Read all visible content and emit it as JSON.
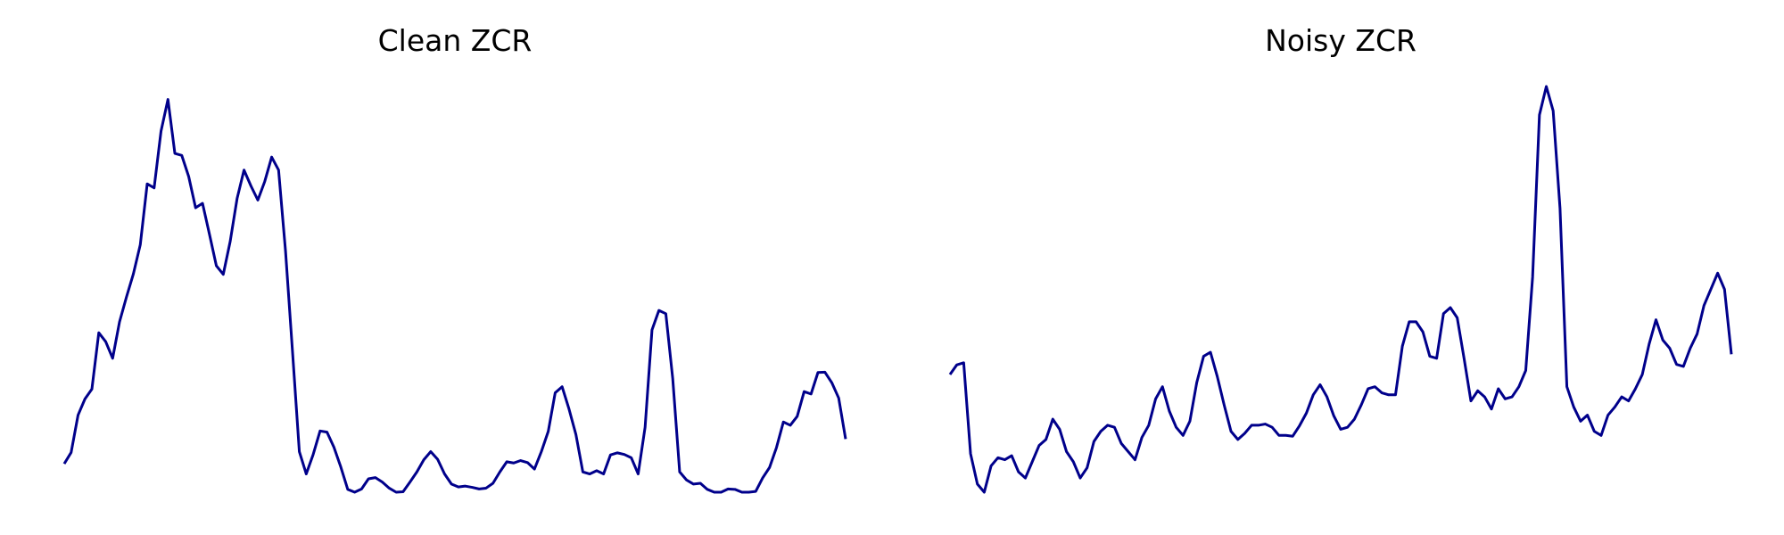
{
  "chart_data": [
    {
      "type": "line",
      "title": "Clean ZCR",
      "grid": false,
      "axes_visible": false,
      "color": "#00008b",
      "series": [
        {
          "values": [
            0.07,
            0.098,
            0.19,
            0.23,
            0.254,
            0.393,
            0.371,
            0.33,
            0.42,
            0.481,
            0.538,
            0.61,
            0.76,
            0.75,
            0.89,
            0.968,
            0.835,
            0.83,
            0.778,
            0.701,
            0.712,
            0.636,
            0.558,
            0.537,
            0.618,
            0.724,
            0.794,
            0.755,
            0.72,
            0.766,
            0.826,
            0.794,
            0.595,
            0.35,
            0.1,
            0.045,
            0.093,
            0.151,
            0.148,
            0.111,
            0.062,
            0.007,
            0.0,
            0.008,
            0.033,
            0.036,
            0.025,
            0.01,
            0.0,
            0.001,
            0.025,
            0.05,
            0.08,
            0.1,
            0.081,
            0.045,
            0.02,
            0.013,
            0.015,
            0.012,
            0.008,
            0.01,
            0.022,
            0.05,
            0.075,
            0.072,
            0.078,
            0.073,
            0.057,
            0.1,
            0.15,
            0.245,
            0.26,
            0.205,
            0.142,
            0.05,
            0.045,
            0.053,
            0.045,
            0.092,
            0.097,
            0.093,
            0.085,
            0.045,
            0.16,
            0.4,
            0.448,
            0.44,
            0.28,
            0.05,
            0.03,
            0.02,
            0.022,
            0.007,
            0.0,
            0.0,
            0.008,
            0.007,
            0.0,
            0.0,
            0.002,
            0.035,
            0.061,
            0.11,
            0.173,
            0.165,
            0.187,
            0.248,
            0.242,
            0.295,
            0.296,
            0.27,
            0.232,
            0.131
          ]
        }
      ]
    },
    {
      "type": "line",
      "title": "Noisy ZCR",
      "grid": false,
      "axes_visible": false,
      "color": "#00008b",
      "series": [
        {
          "values": [
            0.29,
            0.314,
            0.319,
            0.095,
            0.02,
            0.0,
            0.065,
            0.085,
            0.08,
            0.09,
            0.05,
            0.035,
            0.075,
            0.115,
            0.13,
            0.18,
            0.155,
            0.1,
            0.075,
            0.035,
            0.06,
            0.125,
            0.15,
            0.165,
            0.16,
            0.12,
            0.1,
            0.08,
            0.135,
            0.165,
            0.23,
            0.26,
            0.2,
            0.16,
            0.14,
            0.175,
            0.27,
            0.335,
            0.345,
            0.285,
            0.215,
            0.15,
            0.13,
            0.145,
            0.165,
            0.165,
            0.168,
            0.16,
            0.14,
            0.14,
            0.138,
            0.164,
            0.195,
            0.24,
            0.265,
            0.235,
            0.188,
            0.155,
            0.16,
            0.18,
            0.215,
            0.255,
            0.26,
            0.245,
            0.24,
            0.24,
            0.36,
            0.42,
            0.42,
            0.395,
            0.335,
            0.33,
            0.44,
            0.455,
            0.43,
            0.33,
            0.225,
            0.25,
            0.235,
            0.205,
            0.255,
            0.23,
            0.235,
            0.26,
            0.3,
            0.53,
            0.93,
            1.0,
            0.94,
            0.7,
            0.26,
            0.21,
            0.175,
            0.19,
            0.15,
            0.14,
            0.19,
            0.21,
            0.235,
            0.225,
            0.255,
            0.29,
            0.365,
            0.425,
            0.375,
            0.355,
            0.315,
            0.31,
            0.355,
            0.39,
            0.46,
            0.5,
            0.54,
            0.5,
            0.34
          ]
        }
      ]
    }
  ]
}
